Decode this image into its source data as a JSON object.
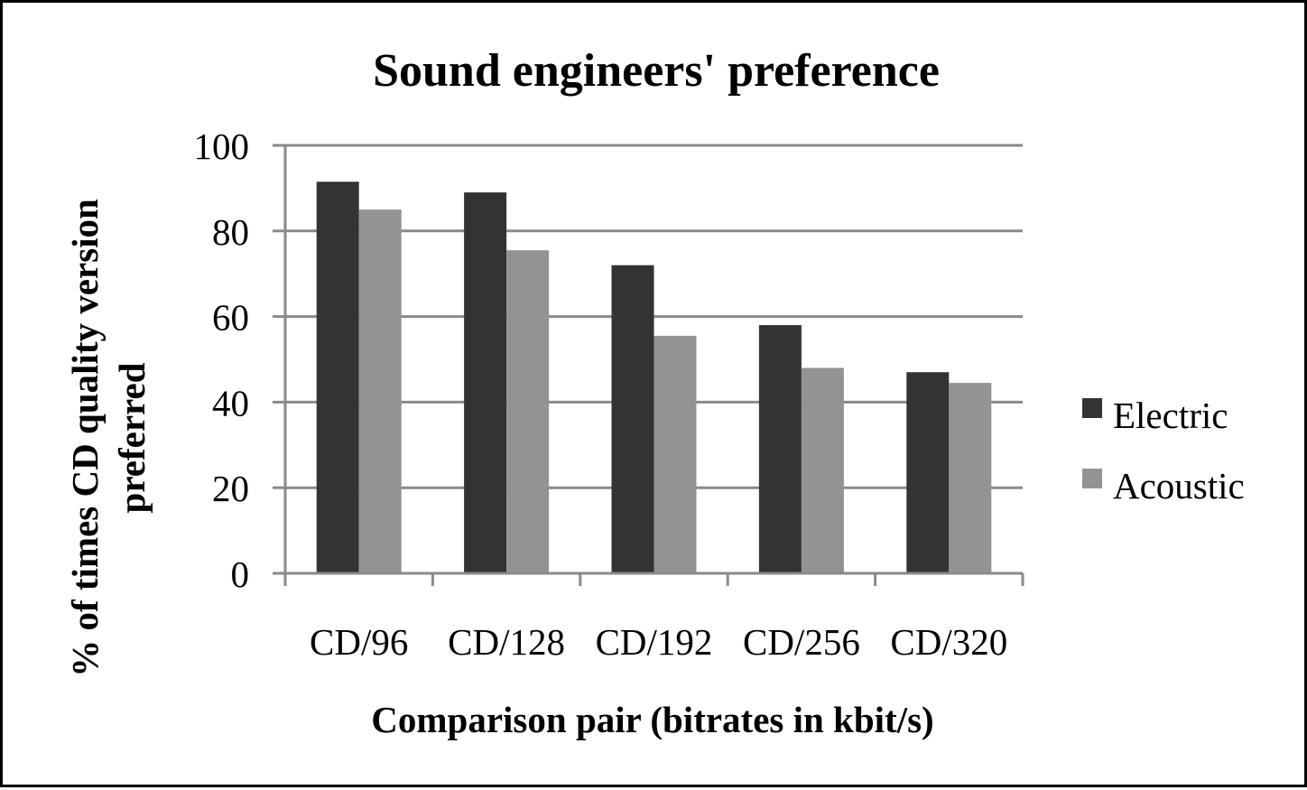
{
  "chart_data": {
    "type": "bar",
    "title": "Sound engineers' preference",
    "xlabel": "Comparison pair (bitrates in kbit/s)",
    "ylabel_lines": [
      "% of times CD quality version",
      "preferred"
    ],
    "categories": [
      "CD/96",
      "CD/128",
      "CD/192",
      "CD/256",
      "CD/320"
    ],
    "series": [
      {
        "name": "Electric",
        "color": "#333333",
        "values": [
          91.5,
          89,
          72,
          58,
          47
        ]
      },
      {
        "name": "Acoustic",
        "color": "#939393",
        "values": [
          85,
          75.5,
          55.5,
          48,
          44.5
        ]
      }
    ],
    "ylim": [
      0,
      100
    ],
    "yticks": [
      "0",
      "20",
      "40",
      "60",
      "80",
      "100"
    ],
    "ytick_values": [
      0,
      20,
      40,
      60,
      80,
      100
    ],
    "grid": true,
    "legend_position": "right",
    "gridline_color": "#8a8a8a",
    "axis_color": "#8a8a8a"
  }
}
